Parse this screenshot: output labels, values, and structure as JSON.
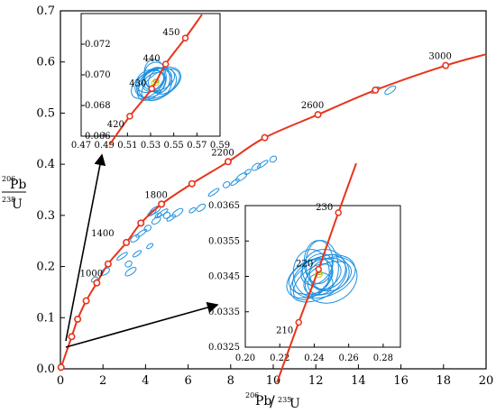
{
  "chart_data": [
    {
      "type": "scatter",
      "panel": "main",
      "title": "",
      "xlabel": {
        "mass_top": "206",
        "elem_top": "Pb",
        "mass_bot": "235",
        "elem_bot": "U"
      },
      "ylabel": {
        "mass_top": "206",
        "elem_top": "Pb",
        "mass_bot": "238",
        "elem_bot": "U"
      },
      "xlim": [
        0,
        20
      ],
      "ylim": [
        0,
        0.7
      ],
      "xticks": [
        "0",
        "2",
        "4",
        "6",
        "8",
        "10",
        "12",
        "14",
        "16",
        "18",
        "20"
      ],
      "yticks": [
        "0.0",
        "0.1",
        "0.2",
        "0.3",
        "0.4",
        "0.5",
        "0.6",
        "0.7"
      ],
      "concordia": {
        "color": "#e8341c",
        "marker_x": [
          0.03,
          0.53,
          0.81,
          1.21,
          1.71,
          2.24,
          3.1,
          3.78,
          4.75,
          6.18,
          7.88,
          9.6,
          12.1,
          14.8,
          18.1
        ],
        "marker_y": [
          0.003,
          0.063,
          0.097,
          0.133,
          0.168,
          0.205,
          0.247,
          0.285,
          0.322,
          0.362,
          0.405,
          0.452,
          0.497,
          0.545,
          0.593
        ],
        "age_labels": [
          {
            "text": "1000",
            "x": 1.71,
            "y": 0.168
          },
          {
            "text": "1400",
            "x": 2.24,
            "y": 0.247
          },
          {
            "text": "1800",
            "x": 4.75,
            "y": 0.322
          },
          {
            "text": "2200",
            "x": 7.88,
            "y": 0.405
          },
          {
            "text": "2600",
            "x": 12.1,
            "y": 0.497
          },
          {
            "text": "3000",
            "x": 18.1,
            "y": 0.593
          }
        ]
      },
      "ellipses": {
        "color": "#1e90e0",
        "points": [
          {
            "x": 1.6,
            "y": 0.175
          },
          {
            "x": 2.1,
            "y": 0.19
          },
          {
            "x": 2.9,
            "y": 0.22
          },
          {
            "x": 3.2,
            "y": 0.205
          },
          {
            "x": 3.6,
            "y": 0.225
          },
          {
            "x": 3.3,
            "y": 0.19
          },
          {
            "x": 4.2,
            "y": 0.24
          },
          {
            "x": 3.5,
            "y": 0.255
          },
          {
            "x": 3.8,
            "y": 0.265
          },
          {
            "x": 4.1,
            "y": 0.275
          },
          {
            "x": 4.3,
            "y": 0.305
          },
          {
            "x": 4.45,
            "y": 0.31
          },
          {
            "x": 4.6,
            "y": 0.3
          },
          {
            "x": 4.5,
            "y": 0.29
          },
          {
            "x": 4.8,
            "y": 0.305
          },
          {
            "x": 5.0,
            "y": 0.3
          },
          {
            "x": 5.2,
            "y": 0.295
          },
          {
            "x": 5.5,
            "y": 0.305
          },
          {
            "x": 6.2,
            "y": 0.31
          },
          {
            "x": 6.6,
            "y": 0.315
          },
          {
            "x": 7.2,
            "y": 0.345
          },
          {
            "x": 7.8,
            "y": 0.36
          },
          {
            "x": 8.2,
            "y": 0.365
          },
          {
            "x": 8.5,
            "y": 0.375
          },
          {
            "x": 8.8,
            "y": 0.385
          },
          {
            "x": 9.2,
            "y": 0.395
          },
          {
            "x": 9.5,
            "y": 0.4
          },
          {
            "x": 10.0,
            "y": 0.41
          },
          {
            "x": 14.8,
            "y": 0.545
          },
          {
            "x": 15.5,
            "y": 0.545
          }
        ]
      }
    },
    {
      "type": "scatter",
      "panel": "inset-top",
      "xlim": [
        0.47,
        0.59
      ],
      "ylim": [
        0.066,
        0.074
      ],
      "xticks": [
        "0.47",
        "0.49",
        "0.51",
        "0.53",
        "0.55",
        "0.57",
        "0.59"
      ],
      "yticks": [
        "0.066",
        "0.068",
        "0.070",
        "0.072"
      ],
      "concordia": {
        "marker_x": [
          0.512,
          0.531,
          0.543,
          0.56
        ],
        "marker_y": [
          0.0673,
          0.0691,
          0.0707,
          0.0724
        ]
      },
      "age_labels": [
        "420",
        "430",
        "440",
        "450"
      ]
    },
    {
      "type": "scatter",
      "panel": "inset-bottom",
      "xlim": [
        0.2,
        0.29
      ],
      "ylim": [
        0.0325,
        0.0365
      ],
      "xticks": [
        "0.20",
        "0.22",
        "0.24",
        "0.26",
        "0.28"
      ],
      "yticks": [
        "0.0325",
        "0.0335",
        "0.0345",
        "0.0355",
        "0.0365"
      ],
      "concordia": {
        "marker_x": [
          0.231,
          0.2425,
          0.254
        ],
        "marker_y": [
          0.0332,
          0.0347,
          0.0363
        ]
      },
      "age_labels": [
        "210",
        "220",
        "230"
      ]
    }
  ]
}
